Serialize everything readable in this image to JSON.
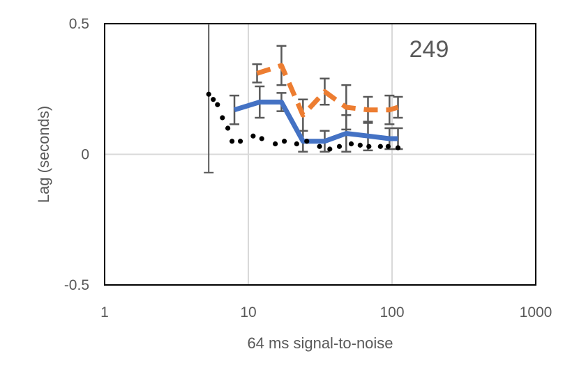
{
  "chart_data": {
    "type": "line",
    "xlabel": "64 ms signal-to-noise",
    "ylabel": "Lag (seconds)",
    "annotation": "249",
    "x_scale": "log",
    "xlim": [
      1,
      1000
    ],
    "ylim": [
      -0.5,
      0.5
    ],
    "x_ticks": [
      1,
      10,
      100,
      1000
    ],
    "x_tick_labels": [
      "1",
      "10",
      "100",
      "1000"
    ],
    "y_ticks": [
      -0.5,
      0,
      0.5
    ],
    "y_tick_labels": [
      "-0.5",
      "0",
      "0.5"
    ],
    "grid": true,
    "legend": "none",
    "series": [
      {
        "style": "solid",
        "color": "#4472C4",
        "x": [
          8,
          12,
          17,
          24,
          34,
          48,
          68,
          96,
          110
        ],
        "y": [
          0.17,
          0.2,
          0.2,
          0.05,
          0.05,
          0.08,
          0.07,
          0.06,
          0.06
        ],
        "err": [
          0.055,
          0.06,
          0.035,
          0.04,
          0.04,
          0.07,
          0.055,
          0.04,
          0.04
        ]
      },
      {
        "style": "dashed",
        "color": "#ED7D31",
        "x": [
          11.5,
          17,
          24,
          34,
          48,
          68,
          96,
          110
        ],
        "y": [
          0.31,
          0.34,
          0.15,
          0.24,
          0.18,
          0.17,
          0.17,
          0.18
        ],
        "err": [
          0.035,
          0.075,
          0.06,
          0.05,
          0.085,
          0.05,
          0.055,
          0.04
        ]
      },
      {
        "style": "dotted",
        "color": "#000000",
        "x": [
          5.3,
          5.7,
          6.1,
          6.6,
          7.2,
          7.7,
          8.8,
          10.8,
          12.4,
          15.4,
          17.8,
          21.7,
          25.5,
          31.3,
          36.9,
          43,
          52,
          60,
          69,
          83,
          94,
          110
        ],
        "y": [
          0.23,
          0.21,
          0.19,
          0.14,
          0.1,
          0.05,
          0.05,
          0.07,
          0.06,
          0.04,
          0.05,
          0.04,
          0.05,
          0.03,
          0.02,
          0.03,
          0.04,
          0.035,
          0.03,
          0.03,
          0.03,
          0.025
        ],
        "err_points": [
          {
            "x": 5.3,
            "y": 0.23,
            "lo": -0.07,
            "hi": 0.5
          }
        ]
      }
    ]
  }
}
